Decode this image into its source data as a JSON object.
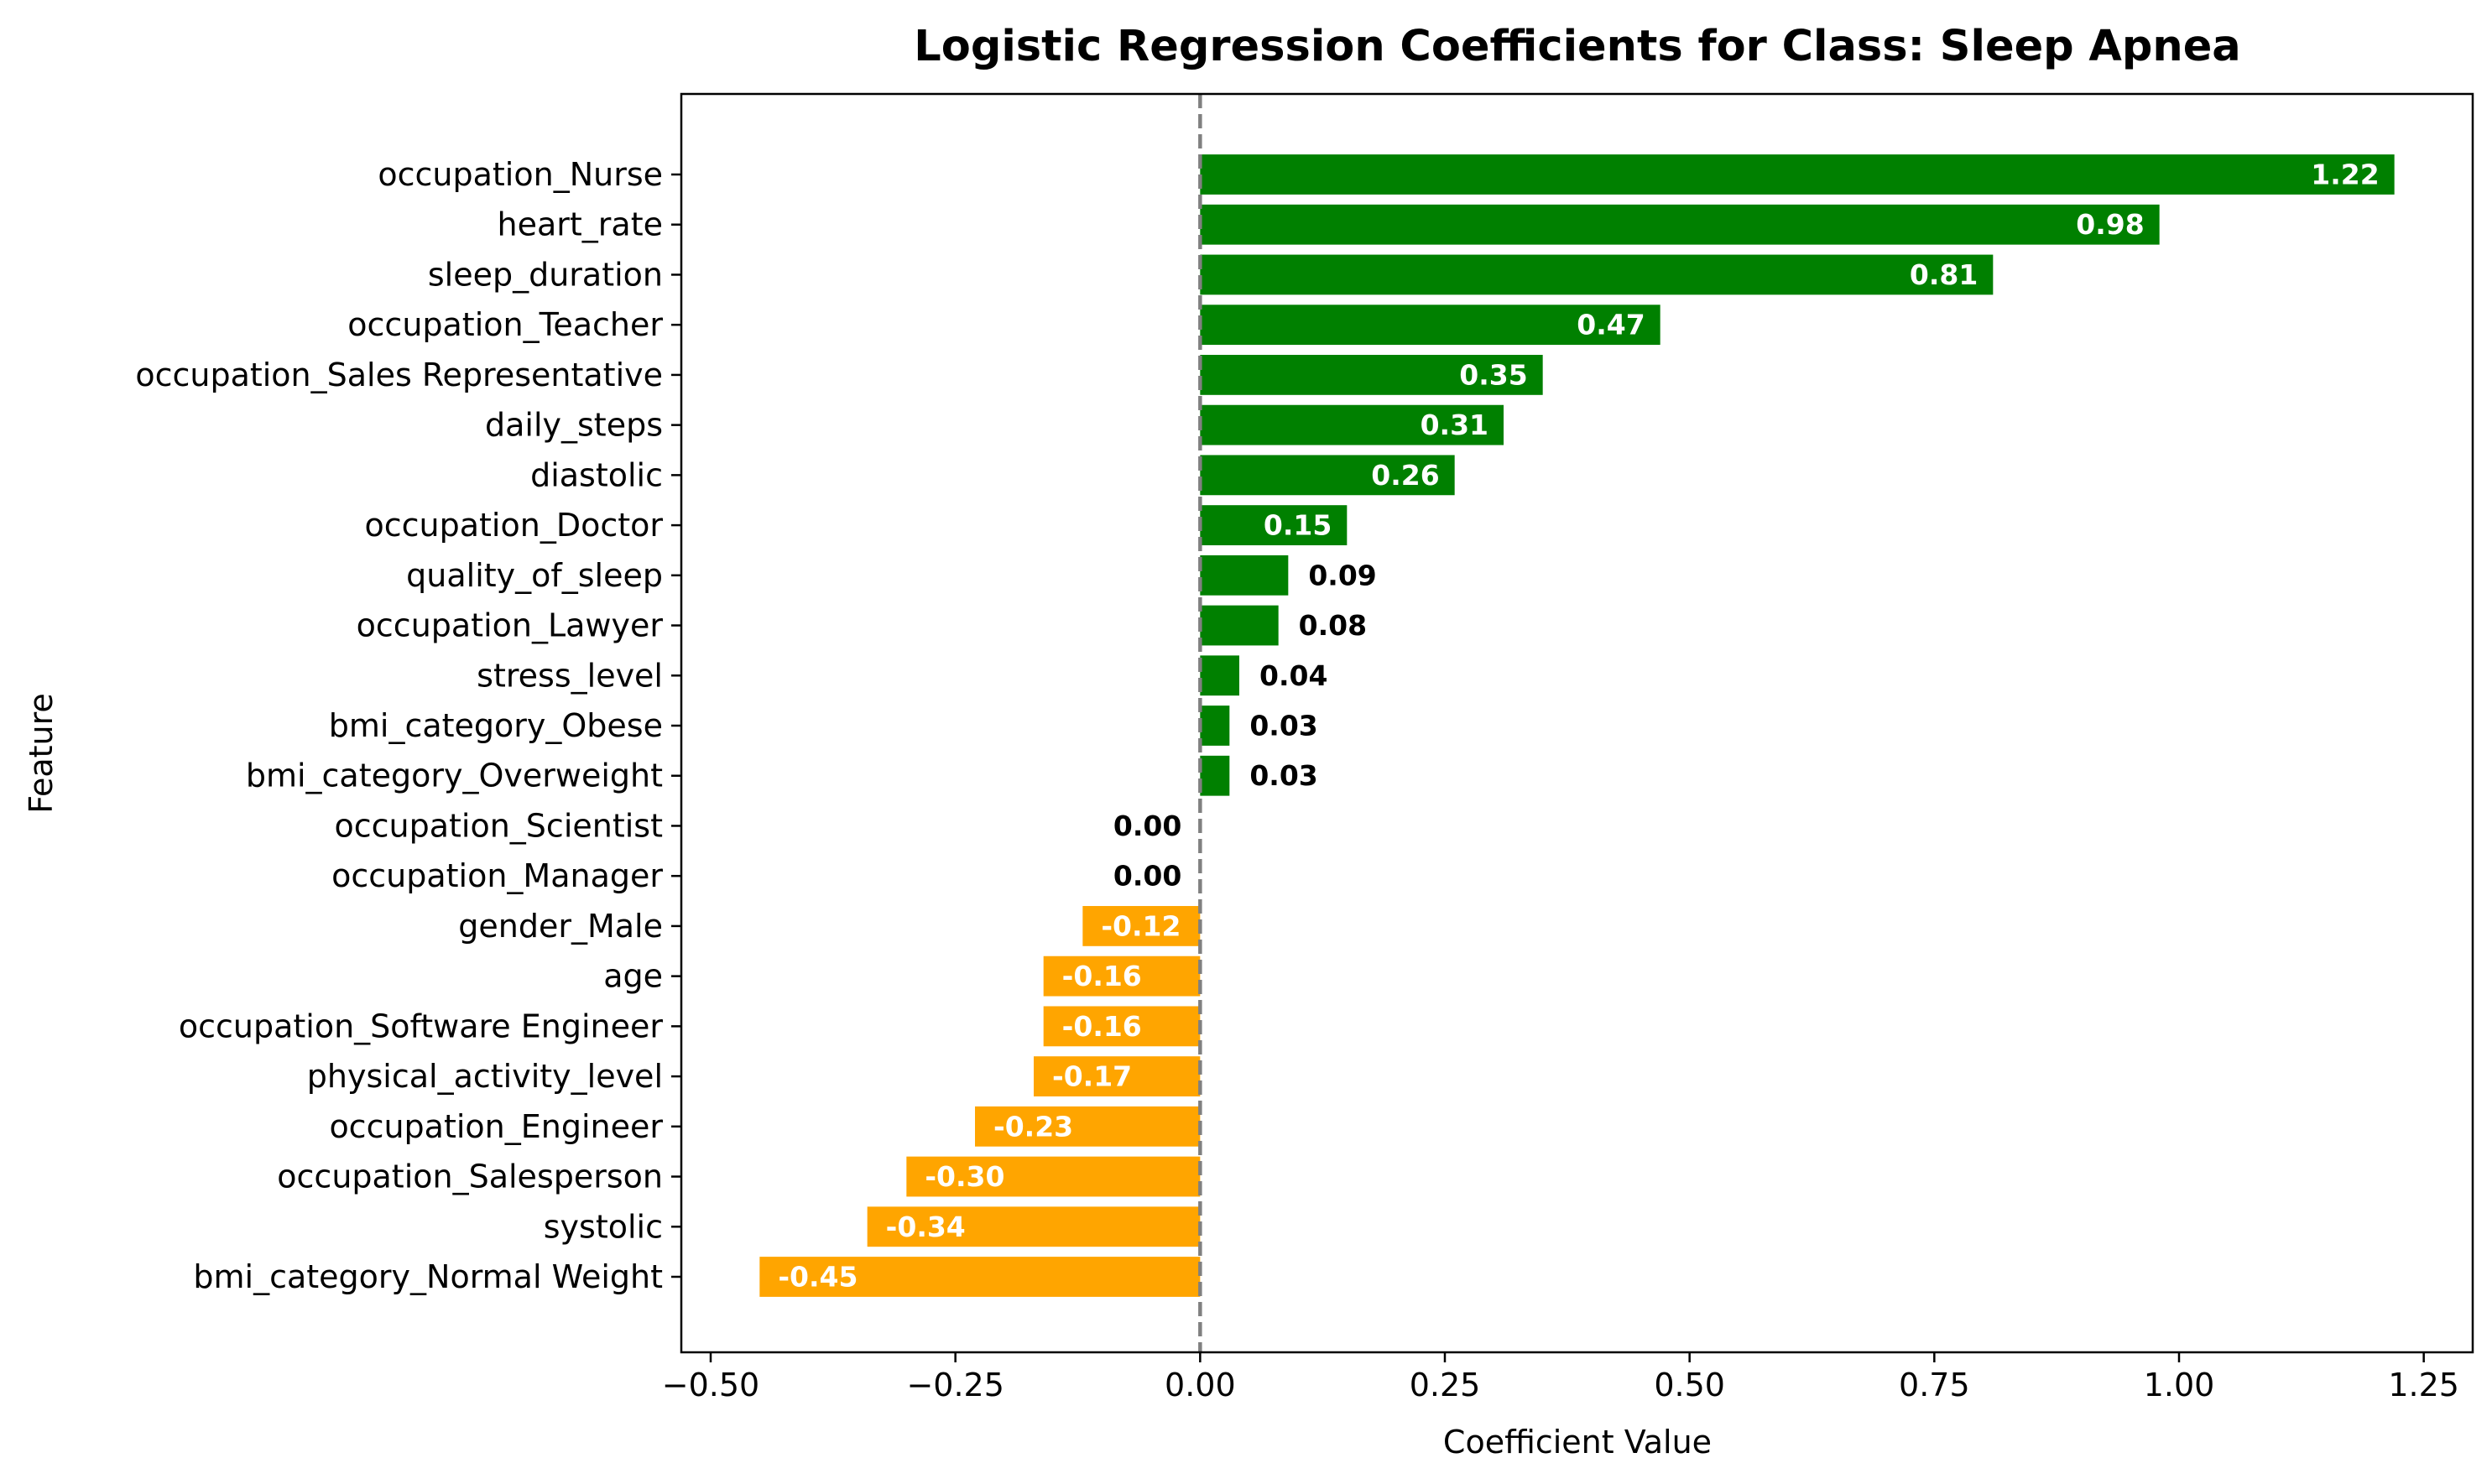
{
  "chart_data": {
    "type": "bar",
    "orientation": "horizontal",
    "title": "Logistic Regression Coefficients for Class: Sleep Apnea",
    "xlabel": "Coefficient Value",
    "ylabel": "Feature",
    "xlim": [
      -0.53,
      1.3
    ],
    "xticks": [
      -0.5,
      -0.25,
      0.0,
      0.25,
      0.5,
      0.75,
      1.0,
      1.25
    ],
    "xtick_labels": [
      "−0.50",
      "−0.25",
      "0.00",
      "0.25",
      "0.50",
      "0.75",
      "1.00",
      "1.25"
    ],
    "zero_line": {
      "style": "dashed",
      "color": "#808080"
    },
    "colors": {
      "positive": "#008000",
      "negative": "#FFA500",
      "inside_label": "#ffffff",
      "outside_label": "#000000"
    },
    "grid": false,
    "categories": [
      "occupation_Nurse",
      "heart_rate",
      "sleep_duration",
      "occupation_Teacher",
      "occupation_Sales Representative",
      "daily_steps",
      "diastolic",
      "occupation_Doctor",
      "quality_of_sleep",
      "occupation_Lawyer",
      "stress_level",
      "bmi_category_Obese",
      "bmi_category_Overweight",
      "occupation_Scientist",
      "occupation_Manager",
      "gender_Male",
      "age",
      "occupation_Software Engineer",
      "physical_activity_level",
      "occupation_Engineer",
      "occupation_Salesperson",
      "systolic",
      "bmi_category_Normal Weight"
    ],
    "values": [
      1.22,
      0.98,
      0.81,
      0.47,
      0.35,
      0.31,
      0.26,
      0.15,
      0.09,
      0.08,
      0.04,
      0.03,
      0.03,
      0.0,
      0.0,
      -0.12,
      -0.16,
      -0.16,
      -0.17,
      -0.23,
      -0.3,
      -0.34,
      -0.45
    ],
    "value_labels": [
      "1.22",
      "0.98",
      "0.81",
      "0.47",
      "0.35",
      "0.31",
      "0.26",
      "0.15",
      "0.09",
      "0.08",
      "0.04",
      "0.03",
      "0.03",
      "0.00",
      "0.00",
      "-0.12",
      "-0.16",
      "-0.16",
      "-0.17",
      "-0.23",
      "-0.30",
      "-0.34",
      "-0.45"
    ],
    "value_label_position": [
      "inside",
      "inside",
      "inside",
      "inside",
      "inside",
      "inside",
      "inside",
      "inside",
      "outside",
      "outside",
      "outside",
      "outside",
      "outside",
      "outside",
      "outside",
      "inside",
      "inside",
      "inside",
      "inside",
      "inside",
      "inside",
      "inside",
      "inside"
    ]
  }
}
